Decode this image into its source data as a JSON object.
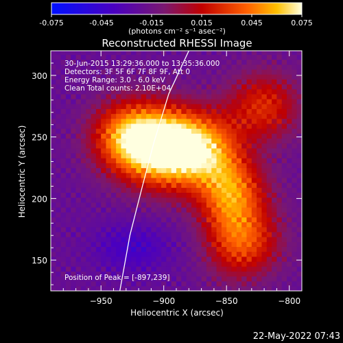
{
  "chart_data": {
    "type": "heatmap",
    "title": "Reconstructed RHESSI Image",
    "xlabel": "Heliocentric X (arcsec)",
    "ylabel": "Heliocentric Y (arcsec)",
    "xlim": [
      -990,
      -790
    ],
    "ylim": [
      125,
      320
    ],
    "xticks": [
      -950,
      -900,
      -850,
      -800
    ],
    "yticks": [
      150,
      200,
      250,
      300
    ],
    "colorbar": {
      "min": -0.075,
      "max": 0.075,
      "ticks": [
        "-0.075",
        "-0.045",
        "-0.015",
        "0.015",
        "0.045",
        "0.075"
      ],
      "label": "(photons cm⁻² s⁻¹ asec⁻²)"
    },
    "annotations": [
      "30-Jun-2015 13:29:36.000 to 13:35:36.000",
      "Detectors: 3F 5F 6F 7F 8F 9F, Att 0",
      "Energy Range: 3.0 - 6.0 keV",
      "Clean     Total counts: 2.10E+04"
    ],
    "peak_label": "Position of Peak = [-897,239]",
    "peak": [
      -897,
      239
    ],
    "limb_points": [
      [
        -935,
        125
      ],
      [
        -927,
        170
      ],
      [
        -917,
        210
      ],
      [
        -908,
        245
      ],
      [
        -896,
        285
      ],
      [
        -880,
        320
      ]
    ],
    "sources": [
      {
        "x": -900,
        "y": 242,
        "value": 0.075
      },
      {
        "x": -930,
        "y": 250,
        "value": 0.045
      },
      {
        "x": -870,
        "y": 240,
        "value": 0.04
      },
      {
        "x": -845,
        "y": 205,
        "value": 0.032
      },
      {
        "x": -835,
        "y": 165,
        "value": 0.03
      },
      {
        "x": -820,
        "y": 275,
        "value": 0.025
      }
    ],
    "background_value": -0.02
  },
  "timestamp": "22-May-2022 07:43"
}
